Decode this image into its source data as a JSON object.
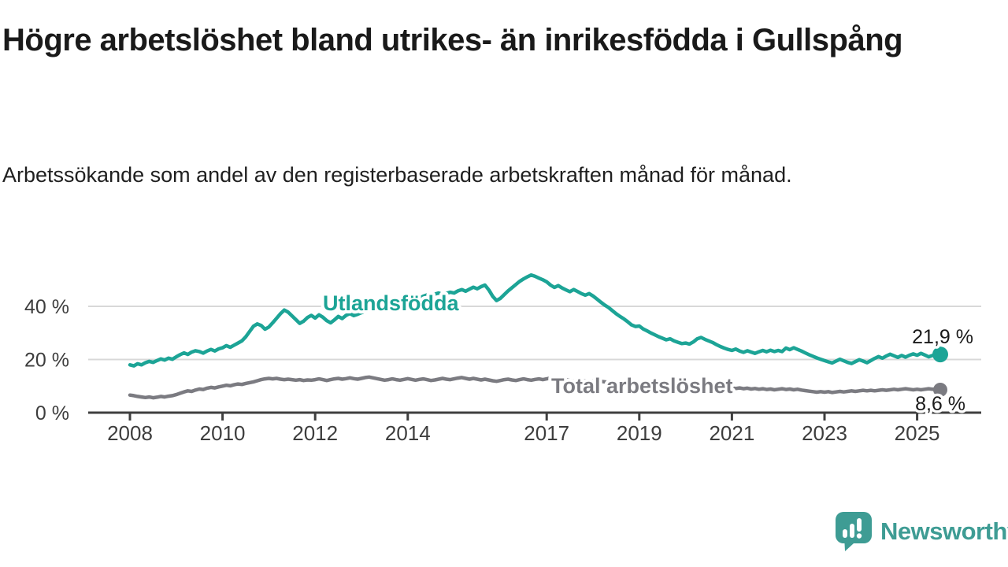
{
  "title": "Högre arbetslöshet bland utrikes- än inrikesfödda i Gullspång",
  "subtitle": "Arbetssökande som andel av den registerbaserade arbetskraften månad för månad.",
  "footer": {
    "brand": "Newsworthy",
    "brand_color": "#3e9c94",
    "logo_icon": "newsworthy-speech-bubble-bar-chart-icon"
  },
  "colors": {
    "accent_teal": "#1ca496",
    "line_gray": "#7b7b81",
    "grid": "#d8d8d8",
    "axis": "#3f3f3f",
    "text": "#1a1a1a"
  },
  "chart_data": {
    "type": "line",
    "title": "Högre arbetslöshet bland utrikes- än inrikesfödda i Gullspång",
    "subtitle": "Arbetssökande som andel av den registerbaserade arbetskraften månad för månad.",
    "xlabel": "",
    "ylabel": "",
    "grid": "horizontal-only",
    "legend_position": "inline-on-lines",
    "x_start_year": 2008.0,
    "x_step_months": 1,
    "x_end_year_last_point": 2025.5,
    "xlim": [
      2007.1,
      2026.4
    ],
    "ylim": [
      0,
      55
    ],
    "x_ticks": [
      2008,
      2010,
      2012,
      2014,
      2017,
      2019,
      2021,
      2023,
      2025
    ],
    "y_ticks": [
      {
        "value": 0,
        "label": "0 %"
      },
      {
        "value": 20,
        "label": "20 %"
      },
      {
        "value": 40,
        "label": "40 %"
      }
    ],
    "series": [
      {
        "name": "Utlandsfödda",
        "color": "#1ca496",
        "end_label": "21,9 %",
        "end_value": 21.9,
        "values": [
          18.0,
          17.6,
          18.4,
          18.0,
          18.8,
          19.3,
          18.9,
          19.6,
          20.2,
          19.8,
          20.5,
          20.1,
          21.0,
          21.8,
          22.5,
          21.9,
          22.8,
          23.3,
          23.0,
          22.4,
          23.2,
          23.8,
          23.2,
          24.0,
          24.4,
          25.2,
          24.6,
          25.4,
          26.2,
          27.0,
          28.5,
          30.5,
          32.5,
          33.4,
          32.8,
          31.4,
          32.2,
          33.8,
          35.5,
          37.2,
          38.6,
          37.8,
          36.4,
          35.0,
          33.6,
          34.4,
          35.8,
          36.6,
          35.6,
          36.8,
          35.9,
          34.6,
          33.8,
          34.9,
          36.2,
          35.4,
          36.6,
          37.3,
          36.5,
          37.0,
          37.6,
          38.3,
          39.0,
          38.5,
          39.4,
          40.2,
          39.8,
          40.8,
          41.5,
          41.0,
          41.8,
          42.4,
          42.0,
          42.8,
          43.5,
          43.0,
          43.8,
          44.3,
          43.9,
          44.6,
          45.0,
          44.4,
          44.9,
          45.3,
          45.0,
          45.8,
          46.3,
          45.7,
          46.5,
          47.2,
          46.6,
          47.4,
          48.0,
          46.2,
          43.8,
          42.2,
          43.0,
          44.4,
          45.8,
          47.0,
          48.2,
          49.4,
          50.3,
          51.1,
          51.8,
          51.3,
          50.6,
          50.0,
          49.2,
          48.0,
          47.1,
          47.8,
          46.9,
          46.2,
          45.5,
          46.3,
          45.6,
          44.8,
          44.2,
          44.8,
          43.9,
          42.8,
          41.6,
          40.5,
          39.6,
          38.4,
          37.2,
          36.2,
          35.3,
          34.2,
          33.0,
          32.4,
          32.6,
          31.5,
          30.8,
          30.0,
          29.3,
          28.6,
          28.0,
          27.4,
          27.8,
          27.0,
          26.5,
          26.0,
          26.2,
          25.8,
          26.6,
          27.8,
          28.3,
          27.6,
          27.0,
          26.4,
          25.6,
          24.9,
          24.3,
          23.8,
          23.4,
          23.9,
          23.2,
          22.7,
          23.3,
          22.8,
          22.3,
          22.9,
          23.4,
          22.9,
          23.5,
          23.0,
          23.4,
          23.0,
          24.3,
          23.7,
          24.4,
          23.8,
          23.2,
          22.5,
          21.8,
          21.2,
          20.6,
          20.1,
          19.6,
          19.1,
          18.7,
          19.4,
          20.1,
          19.5,
          18.9,
          18.5,
          19.2,
          19.9,
          19.4,
          18.8,
          19.6,
          20.4,
          21.1,
          20.5,
          21.3,
          22.0,
          21.4,
          20.8,
          21.5,
          20.9,
          21.6,
          22.1,
          21.6,
          22.3,
          21.7,
          21.0,
          21.5,
          22.2,
          21.9
        ]
      },
      {
        "name": "Total arbetslöshet",
        "color": "#7b7b81",
        "end_label": "8,6 %",
        "end_value": 8.6,
        "values": [
          6.6,
          6.4,
          6.1,
          5.9,
          5.7,
          5.9,
          5.6,
          5.8,
          6.1,
          5.9,
          6.2,
          6.4,
          6.8,
          7.3,
          7.8,
          8.2,
          8.0,
          8.5,
          8.9,
          8.7,
          9.2,
          9.5,
          9.3,
          9.7,
          10.0,
          10.3,
          10.1,
          10.5,
          10.8,
          10.6,
          11.0,
          11.3,
          11.6,
          12.0,
          12.4,
          12.7,
          12.9,
          12.7,
          12.9,
          12.6,
          12.4,
          12.6,
          12.4,
          12.2,
          12.4,
          12.1,
          12.3,
          12.2,
          12.4,
          12.7,
          12.4,
          12.1,
          12.4,
          12.7,
          12.9,
          12.6,
          12.8,
          13.1,
          12.8,
          12.6,
          12.9,
          13.2,
          13.4,
          13.1,
          12.8,
          12.5,
          12.2,
          12.4,
          12.7,
          12.4,
          12.2,
          12.5,
          12.8,
          12.5,
          12.2,
          12.5,
          12.7,
          12.4,
          12.1,
          12.3,
          12.6,
          12.9,
          12.6,
          12.4,
          12.7,
          13.0,
          13.2,
          12.9,
          12.6,
          12.9,
          12.6,
          12.3,
          12.6,
          12.3,
          12.0,
          11.8,
          12.1,
          12.4,
          12.6,
          12.3,
          12.1,
          12.4,
          12.7,
          12.4,
          12.2,
          12.5,
          12.7,
          12.4,
          12.7,
          13.0,
          13.3,
          13.0,
          12.7,
          12.4,
          12.1,
          11.8,
          11.6,
          11.8,
          12.0,
          11.7,
          11.9,
          12.1,
          11.8,
          11.6,
          11.4,
          11.6,
          11.3,
          11.1,
          11.3,
          11.0,
          10.8,
          11.0,
          10.8,
          10.6,
          10.8,
          10.5,
          10.3,
          10.5,
          10.2,
          10.0,
          10.2,
          10.0,
          9.8,
          10.0,
          9.8,
          9.6,
          9.9,
          10.3,
          10.1,
          9.9,
          9.7,
          9.5,
          9.3,
          9.1,
          9.4,
          9.6,
          9.3,
          9.1,
          9.3,
          9.0,
          9.2,
          8.9,
          9.1,
          8.8,
          9.0,
          8.7,
          8.9,
          8.6,
          8.8,
          9.0,
          8.7,
          8.9,
          8.6,
          8.8,
          8.5,
          8.3,
          8.1,
          7.9,
          7.7,
          7.9,
          7.7,
          7.9,
          7.6,
          7.8,
          8.0,
          7.8,
          8.0,
          8.2,
          8.0,
          8.2,
          8.4,
          8.2,
          8.4,
          8.2,
          8.4,
          8.6,
          8.4,
          8.6,
          8.8,
          8.6,
          8.8,
          9.0,
          8.8,
          8.6,
          8.8,
          8.6,
          8.8,
          9.0,
          8.8,
          8.7,
          8.6
        ]
      }
    ]
  }
}
